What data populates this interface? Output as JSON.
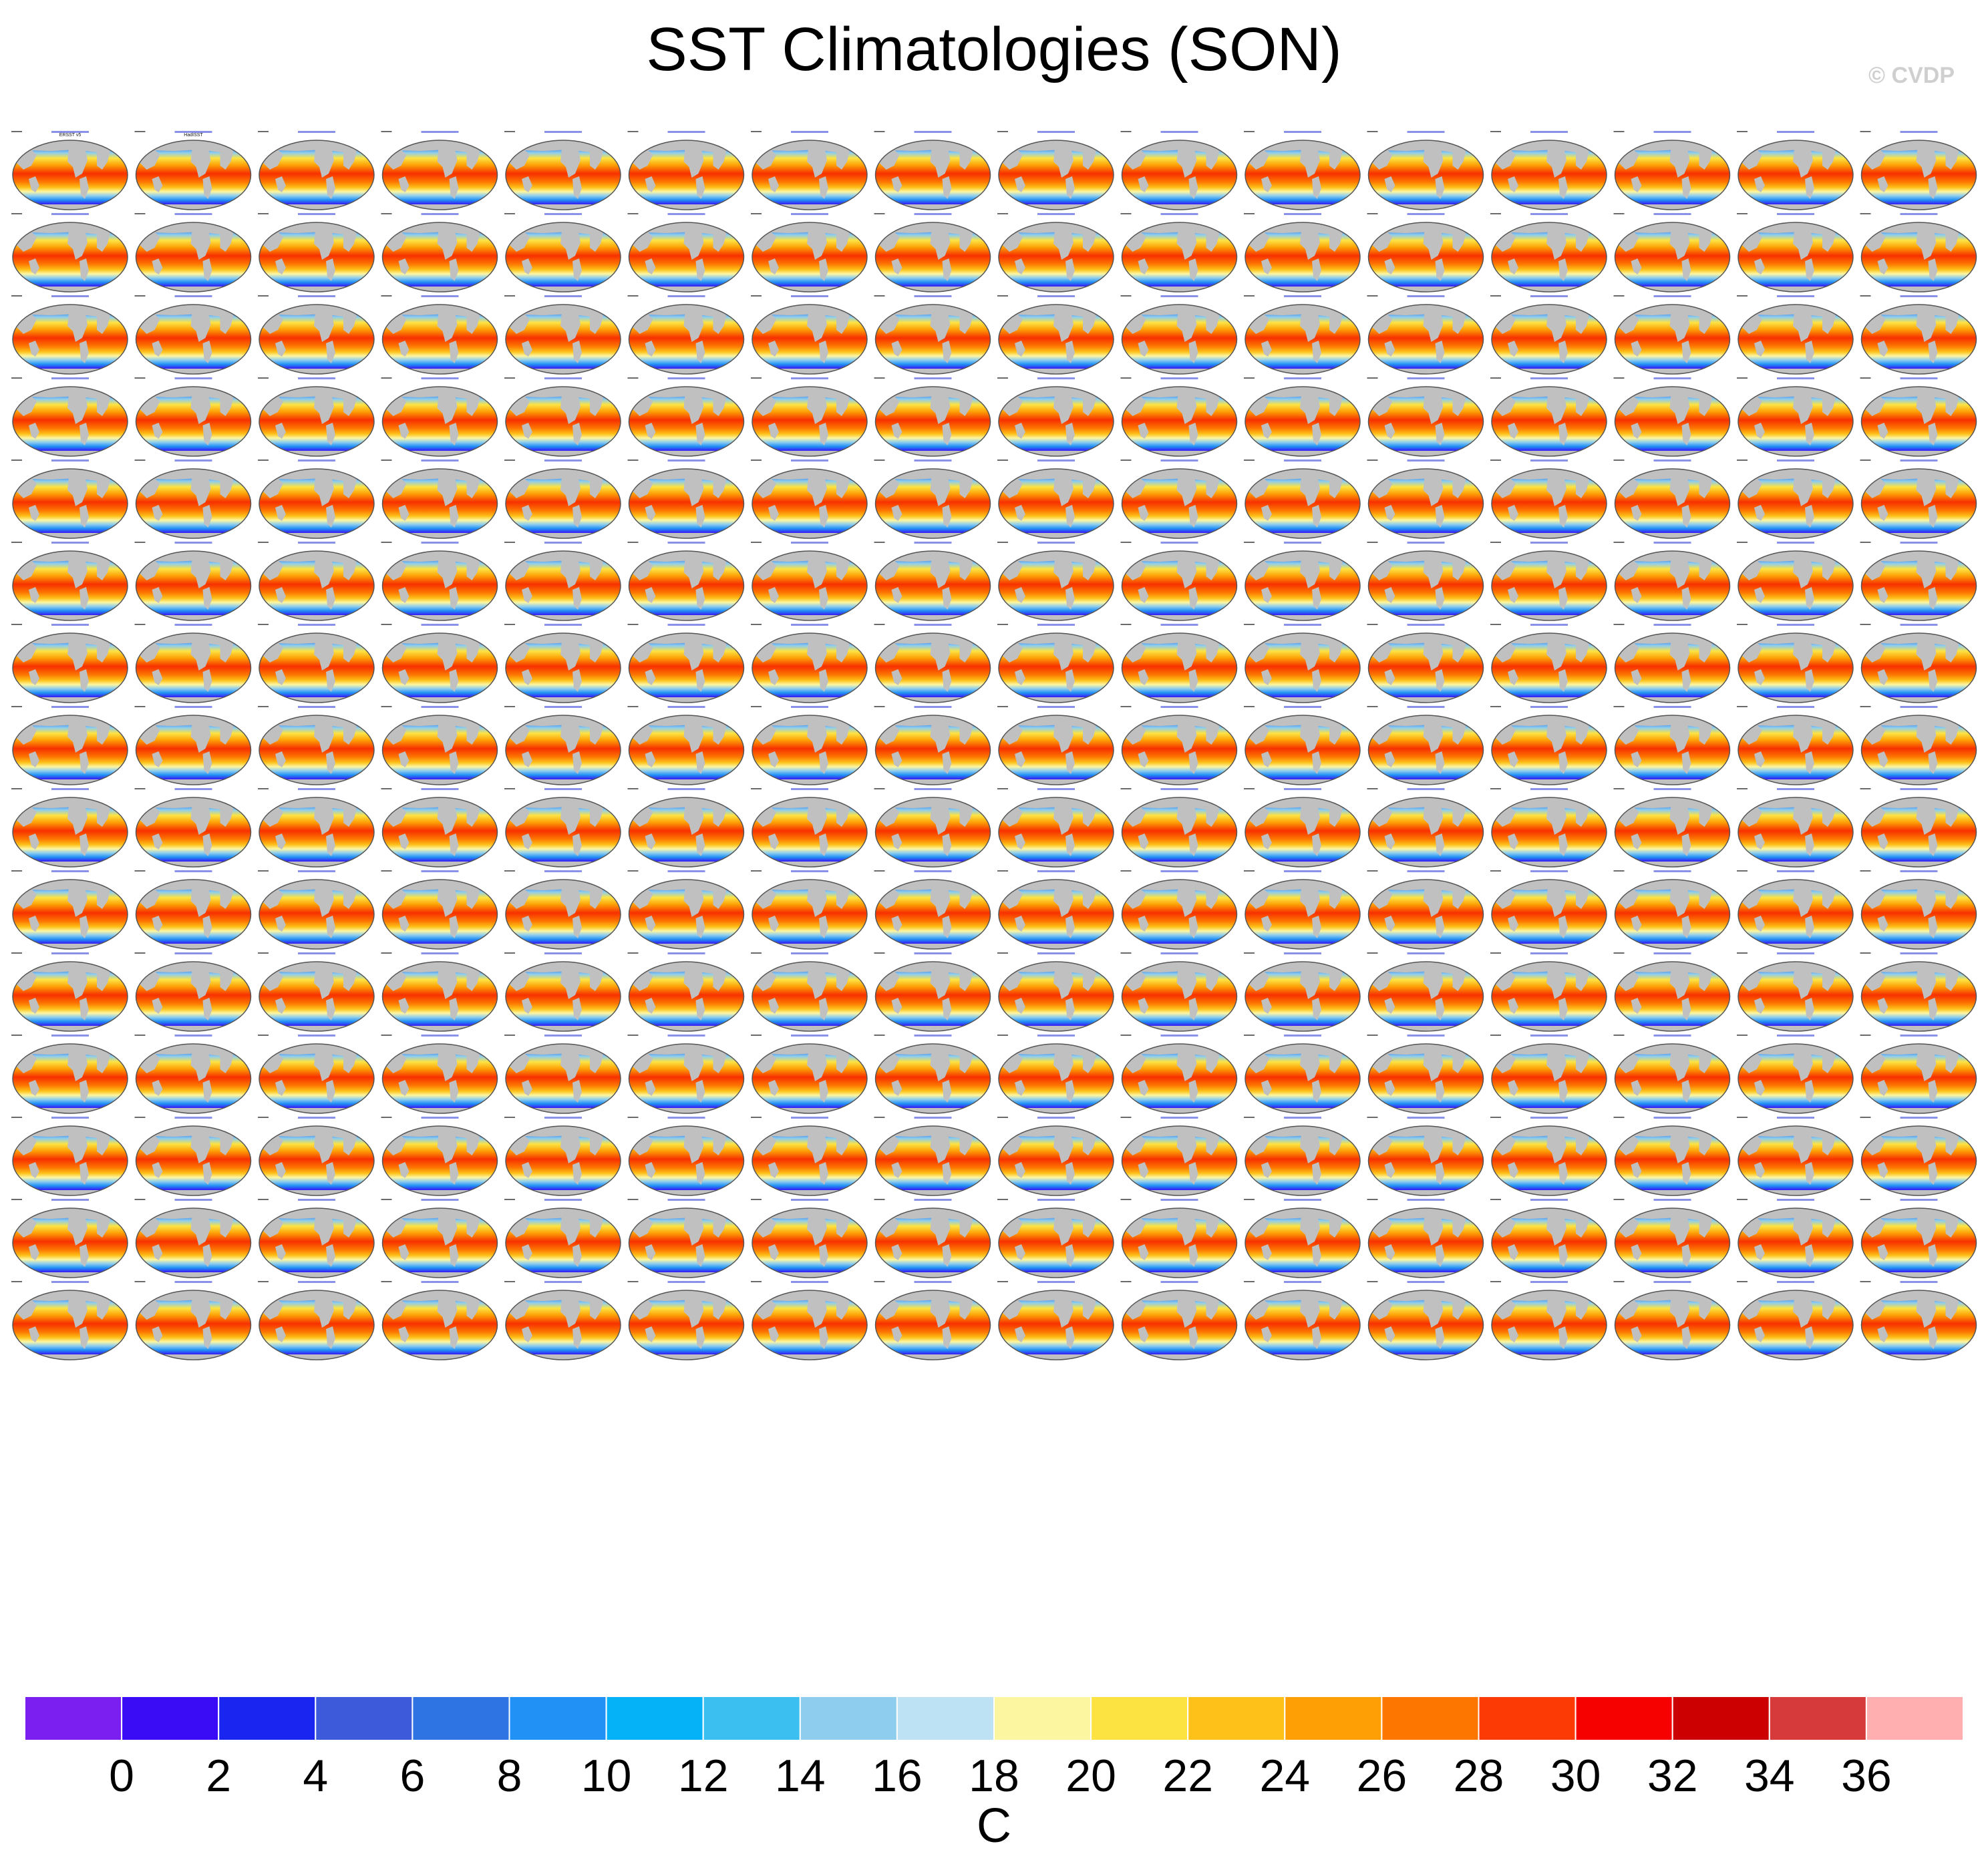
{
  "page": {
    "title": "SST Climatologies (SON)",
    "copyright": "© CVDP"
  },
  "chart_data": {
    "type": "heatmap",
    "variable": "SST",
    "season": "SON",
    "projection": "global map panels (small multiples)",
    "grid": {
      "rows": 15,
      "cols": 16
    },
    "panel_colors": {
      "land": "#c0c0c0",
      "coast": "#555555",
      "title_text": "#3a49d8",
      "side_text": "#6a6a6a"
    },
    "panel_titles_first_row": [
      "ERSST v5",
      "HadISST"
    ],
    "colorbar": {
      "label": "C",
      "ticks": [
        "0",
        "2",
        "4",
        "6",
        "8",
        "10",
        "12",
        "14",
        "16",
        "18",
        "20",
        "22",
        "24",
        "26",
        "28",
        "30",
        "32",
        "34",
        "36"
      ],
      "colors": [
        "#7b1ff0",
        "#3a0cf5",
        "#1a26ef",
        "#3c5ad9",
        "#2e74e2",
        "#2191f5",
        "#06b2f7",
        "#3bbff0",
        "#8ecdee",
        "#bde2f4",
        "#fdf6a0",
        "#fde342",
        "#fdc119",
        "#fd9f05",
        "#fd7700",
        "#fc3a05",
        "#f70000",
        "#cc0000",
        "#d63a3a",
        "#ffafaf"
      ]
    }
  }
}
